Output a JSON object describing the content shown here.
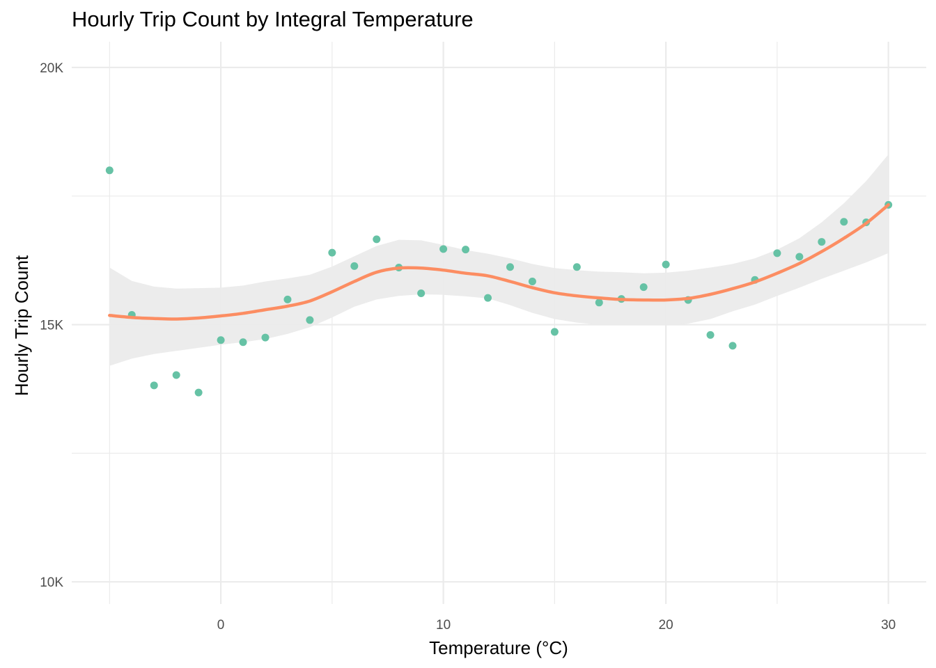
{
  "chart_data": {
    "type": "scatter",
    "title": "Hourly Trip Count by Integral Temperature",
    "xlabel": "Temperature (°C)",
    "ylabel": "Hourly Trip Count",
    "xlim": [
      -6.7,
      31.7
    ],
    "ylim": [
      9570,
      20500
    ],
    "x_ticks": [
      0,
      10,
      20,
      30
    ],
    "x_tick_labels": [
      "0",
      "10",
      "20",
      "30"
    ],
    "x_minor_ticks": [
      -5,
      5,
      15,
      25
    ],
    "y_ticks": [
      10000,
      15000,
      20000
    ],
    "y_tick_labels": [
      "10K",
      "15K",
      "20K"
    ],
    "y_minor_ticks": [
      12500,
      17500
    ],
    "grid": true,
    "colors": {
      "points": "#66c2a5",
      "smooth": "#fc8d62",
      "ribbon": "#ebebeb",
      "grid": "#ebebeb"
    },
    "series": [
      {
        "type": "scatter",
        "points": [
          [
            -5,
            18000
          ],
          [
            -4,
            15190
          ],
          [
            -3,
            13820
          ],
          [
            -2,
            14020
          ],
          [
            -1,
            13680
          ],
          [
            0,
            14700
          ],
          [
            1,
            14660
          ],
          [
            2,
            14750
          ],
          [
            3,
            15490
          ],
          [
            4,
            15090
          ],
          [
            5,
            16400
          ],
          [
            6,
            16140
          ],
          [
            7,
            16660
          ],
          [
            8,
            16110
          ],
          [
            9,
            15610
          ],
          [
            10,
            16470
          ],
          [
            11,
            16460
          ],
          [
            12,
            15520
          ],
          [
            13,
            16120
          ],
          [
            14,
            15840
          ],
          [
            15,
            14860
          ],
          [
            16,
            16120
          ],
          [
            17,
            15430
          ],
          [
            18,
            15500
          ],
          [
            19,
            15730
          ],
          [
            20,
            16170
          ],
          [
            21,
            15480
          ],
          [
            22,
            14800
          ],
          [
            23,
            14590
          ],
          [
            24,
            15870
          ],
          [
            25,
            16390
          ],
          [
            26,
            16320
          ],
          [
            27,
            16610
          ],
          [
            28,
            17000
          ],
          [
            29,
            16990
          ],
          [
            30,
            17330
          ]
        ]
      },
      {
        "type": "smooth",
        "x": [
          -5,
          -4,
          -3,
          -2,
          -1,
          0,
          1,
          2,
          3,
          4,
          5,
          6,
          7,
          8,
          9,
          10,
          11,
          12,
          13,
          14,
          15,
          16,
          17,
          18,
          19,
          20,
          21,
          22,
          23,
          24,
          25,
          26,
          27,
          28,
          29,
          30
        ],
        "y": [
          15180,
          15140,
          15120,
          15110,
          15130,
          15170,
          15220,
          15290,
          15360,
          15460,
          15640,
          15840,
          16020,
          16100,
          16100,
          16060,
          16000,
          15950,
          15840,
          15720,
          15620,
          15560,
          15520,
          15490,
          15480,
          15480,
          15510,
          15590,
          15700,
          15830,
          16000,
          16190,
          16420,
          16680,
          16970,
          17330
        ],
        "lower": [
          14200,
          14340,
          14430,
          14490,
          14550,
          14610,
          14660,
          14720,
          14820,
          14950,
          15140,
          15350,
          15490,
          15560,
          15590,
          15580,
          15550,
          15510,
          15380,
          15230,
          15110,
          15040,
          15000,
          14990,
          14990,
          14990,
          15020,
          15110,
          15260,
          15390,
          15560,
          15720,
          15890,
          16050,
          16210,
          16390
        ],
        "upper": [
          16110,
          15850,
          15740,
          15700,
          15710,
          15720,
          15760,
          15840,
          15900,
          15970,
          16130,
          16330,
          16530,
          16650,
          16640,
          16550,
          16450,
          16380,
          16290,
          16180,
          16100,
          16060,
          16030,
          16020,
          16000,
          16010,
          16050,
          16110,
          16180,
          16290,
          16460,
          16680,
          16990,
          17360,
          17790,
          18310
        ]
      }
    ]
  }
}
